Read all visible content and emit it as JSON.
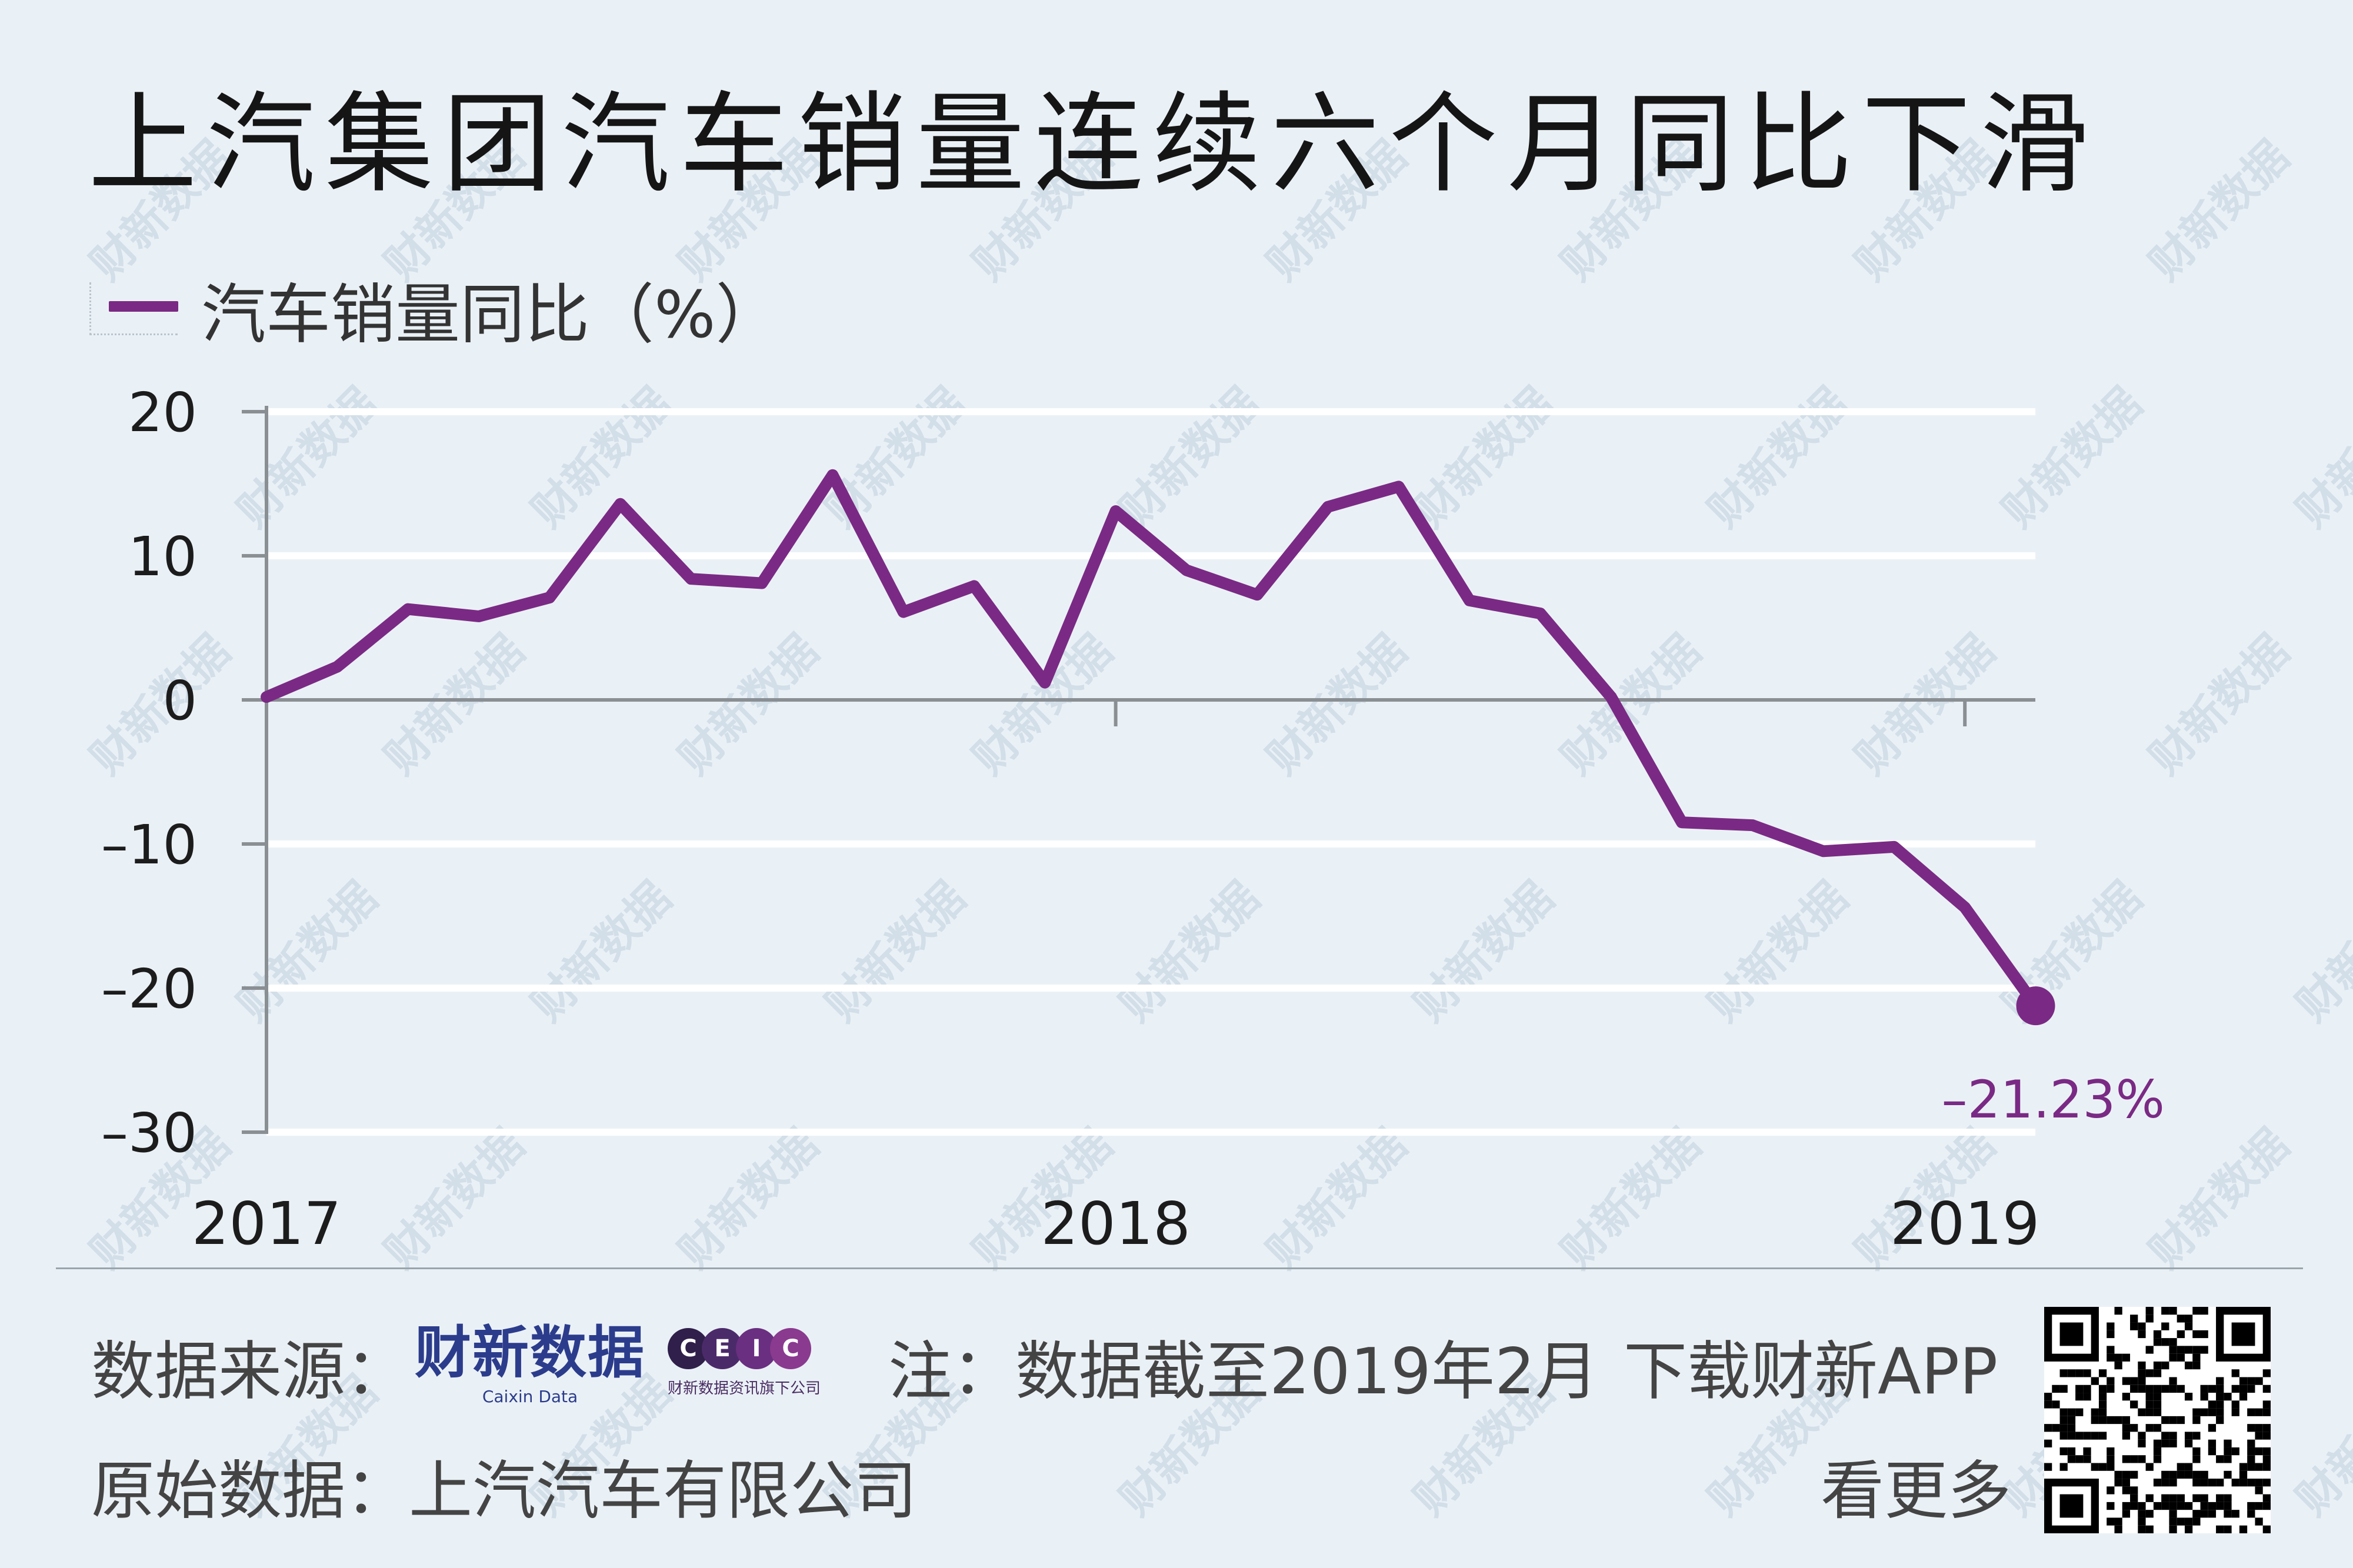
{
  "title": "上汽集团汽车销量连续六个月同比下滑",
  "legend": {
    "label": "汽车销量同比（%）"
  },
  "chart_data": {
    "type": "line",
    "ylim": [
      -30,
      20
    ],
    "yticks": [
      20,
      10,
      0,
      -10,
      -20,
      -30
    ],
    "ytick_labels": [
      "20",
      "10",
      "0",
      "–10",
      "–20",
      "–30"
    ],
    "x_tick_labels": [
      "2017",
      "2018",
      "2019"
    ],
    "x_tick_indices": [
      0,
      12,
      24
    ],
    "series": [
      {
        "name": "汽车销量同比（%）",
        "color": "#7a2a84",
        "values": [
          0.2,
          2.3,
          6.3,
          5.8,
          7.1,
          13.6,
          8.4,
          8.1,
          15.6,
          6.1,
          7.9,
          1.2,
          13.1,
          9.0,
          7.3,
          13.4,
          14.8,
          6.9,
          6.0,
          0.2,
          -8.5,
          -8.7,
          -10.5,
          -10.2,
          -14.4,
          -21.23
        ]
      }
    ],
    "end_label": "–21.23%",
    "grid": true
  },
  "footer": {
    "source_label": "数据来源：",
    "brand_caixin_cn": "财新数据",
    "brand_caixin_en": "Caixin Data",
    "ceic_letters": [
      "C",
      "E",
      "I",
      "C"
    ],
    "ceic_sub": "财新数据资讯旗下公司",
    "note": "注：数据截至2019年2月",
    "raw_source": "原始数据：上汽汽车有限公司",
    "download": "下载财新APP",
    "more": "看更多"
  },
  "watermark": "财新数据",
  "colors": {
    "series": "#7a2a84",
    "background": "#eaf1f6",
    "grid": "#ffffff",
    "axis": "#8a8f94"
  }
}
